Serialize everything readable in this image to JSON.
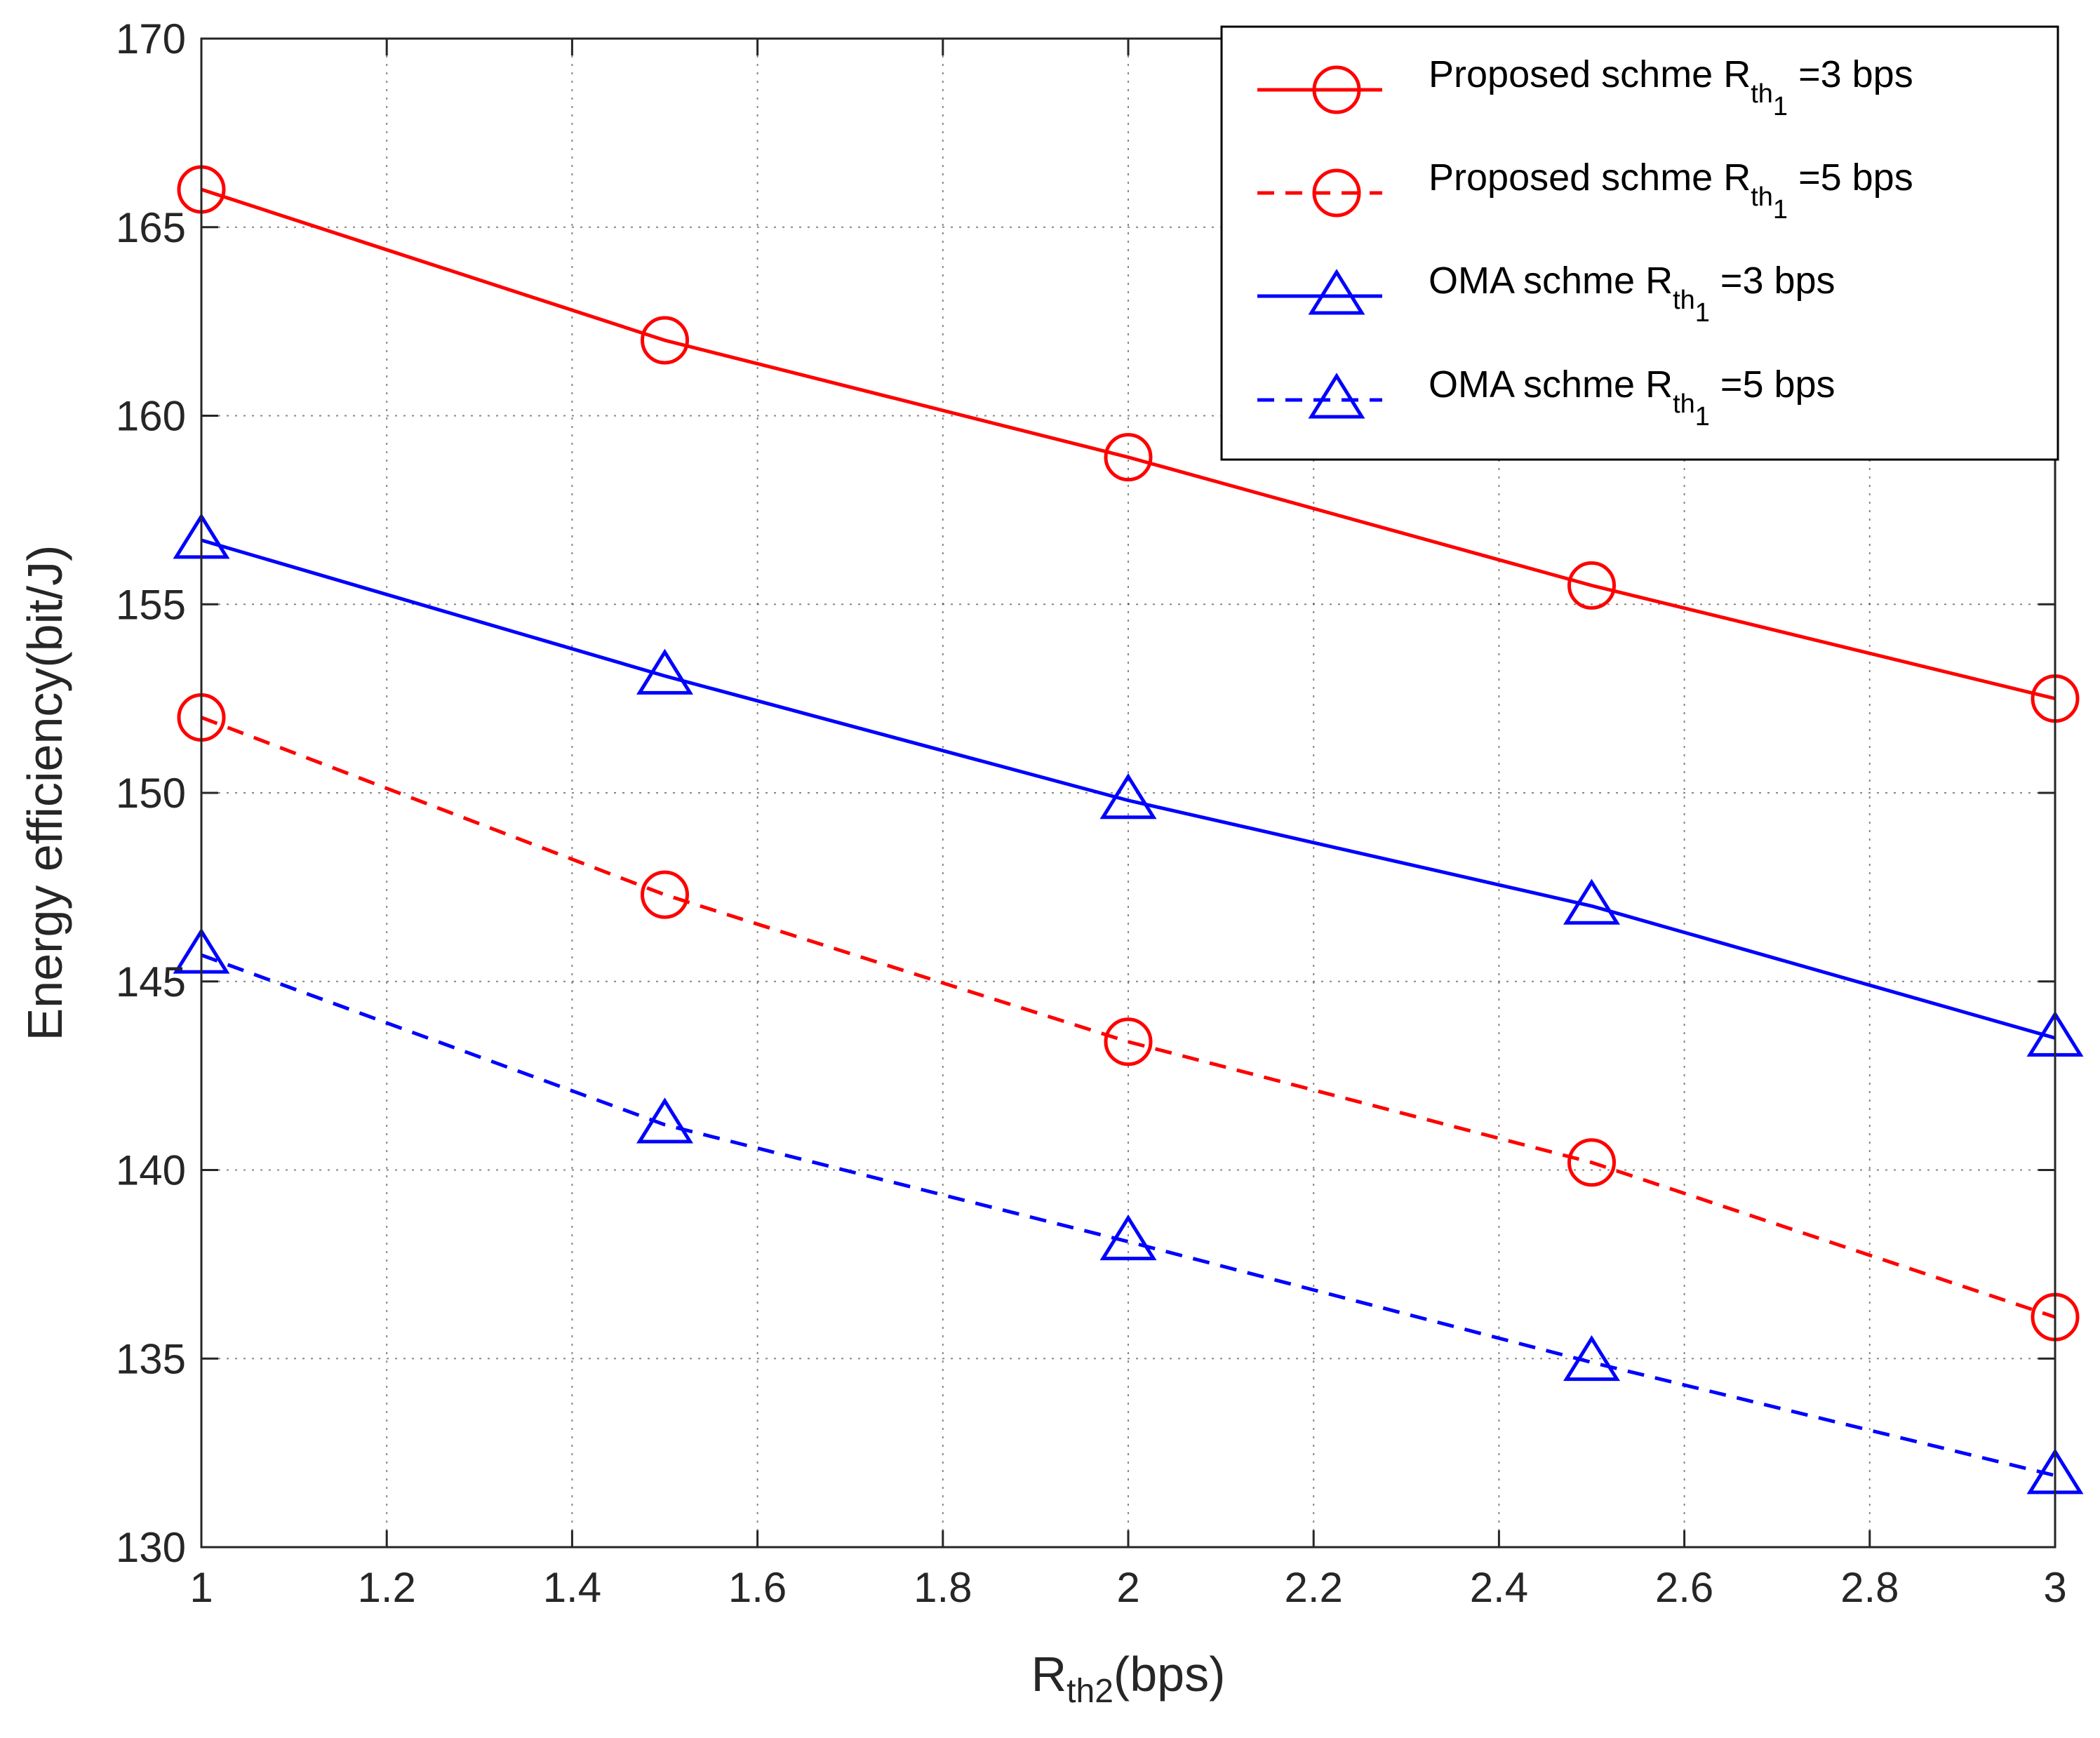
{
  "chart_data": {
    "type": "line",
    "title": "",
    "xlabel_main": "R",
    "xlabel_sub": "th2",
    "xlabel_tail": "(bps)",
    "ylabel": "Energy efficiency(bit/J)",
    "xlim": [
      1,
      3
    ],
    "ylim": [
      130,
      170
    ],
    "xticks": [
      1,
      1.2,
      1.4,
      1.6,
      1.8,
      2,
      2.2,
      2.4,
      2.6,
      2.8,
      3
    ],
    "xtick_labels": [
      "1",
      "1.2",
      "1.4",
      "1.6",
      "1.8",
      "2",
      "2.2",
      "2.4",
      "2.6",
      "2.8",
      "3"
    ],
    "yticks": [
      130,
      135,
      140,
      145,
      150,
      155,
      160,
      165,
      170
    ],
    "ytick_labels": [
      "130",
      "135",
      "140",
      "145",
      "150",
      "155",
      "160",
      "165",
      "170"
    ],
    "grid": true,
    "legend_position": "top-right",
    "x": [
      1,
      1.5,
      2,
      2.5,
      3
    ],
    "series": [
      {
        "name": "Proposed schme Rth1=3 bps",
        "label_pre": "Proposed schme R",
        "label_sub": "th",
        "label_subsub": "1",
        "label_post": " =3 bps",
        "color": "#ff0000",
        "style": "solid",
        "marker": "circle",
        "values": [
          166.0,
          162.0,
          158.9,
          155.5,
          152.5
        ]
      },
      {
        "name": "Proposed schme Rth1=5 bps",
        "label_pre": "Proposed schme R",
        "label_sub": "th",
        "label_subsub": "1",
        "label_post": " =5 bps",
        "color": "#ff0000",
        "style": "dashed",
        "marker": "circle",
        "values": [
          152.0,
          147.3,
          143.4,
          140.2,
          136.1
        ]
      },
      {
        "name": "OMA schme Rth1=3 bps",
        "label_pre": "OMA schme R",
        "label_sub": "th",
        "label_subsub": "1",
        "label_post": " =3 bps",
        "color": "#0000ff",
        "style": "solid",
        "marker": "triangle",
        "values": [
          156.7,
          153.1,
          149.8,
          147.0,
          143.5
        ]
      },
      {
        "name": "OMA schme Rth1=5 bps",
        "label_pre": "OMA schme R",
        "label_sub": "th",
        "label_subsub": "1",
        "label_post": " =5 bps",
        "color": "#0000ff",
        "style": "dashed",
        "marker": "triangle",
        "values": [
          145.7,
          141.2,
          138.1,
          134.9,
          131.9
        ]
      }
    ]
  }
}
